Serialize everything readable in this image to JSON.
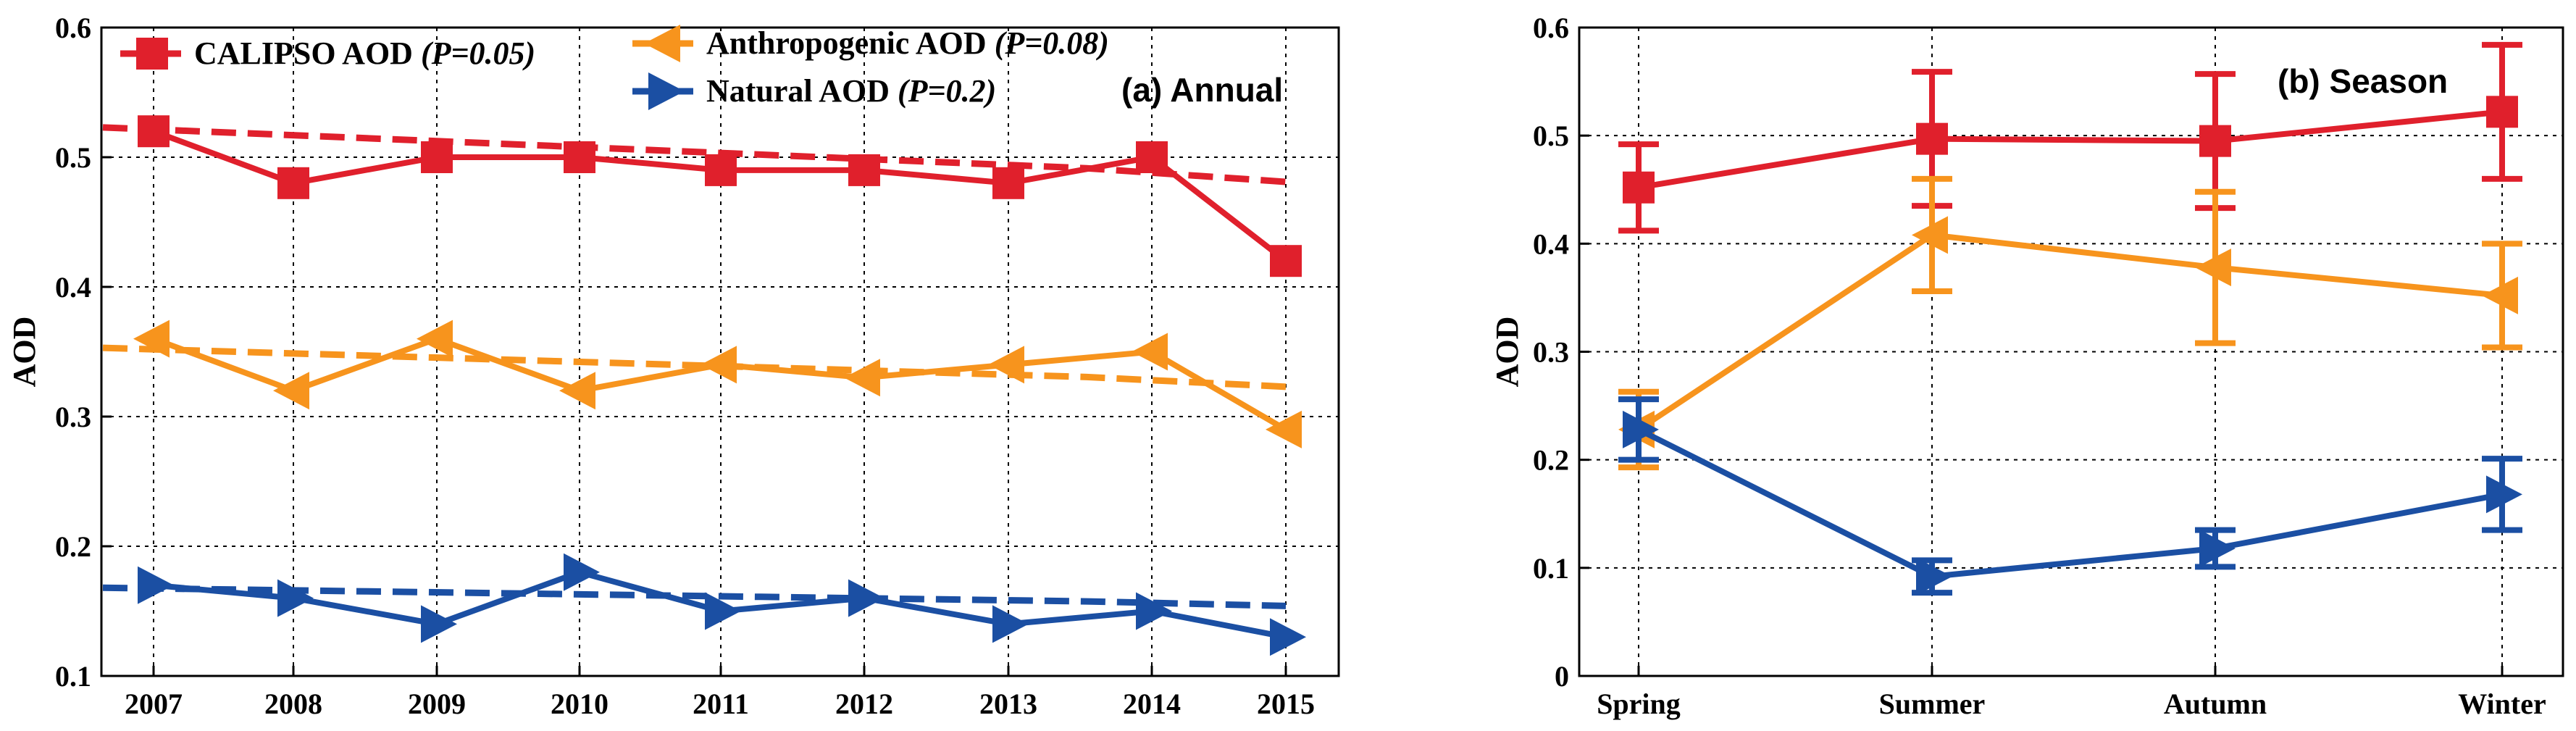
{
  "chart_data": [
    {
      "type": "line",
      "panel_label": "(a) Annual",
      "ylabel": "AOD",
      "ylim": [
        0.1,
        0.6
      ],
      "yticks": [
        "0.1",
        "0.2",
        "0.3",
        "0.4",
        "0.5",
        "0.6"
      ],
      "categories": [
        "2007",
        "2008",
        "2009",
        "2010",
        "2011",
        "2012",
        "2013",
        "2014",
        "2015"
      ],
      "grid": true,
      "legend_position": "top-left",
      "series": [
        {
          "name": "CALIPSO  AOD",
          "p_value": "(P=0.05)",
          "color": "#e0202c",
          "marker": "square",
          "values": [
            0.52,
            0.48,
            0.5,
            0.5,
            0.49,
            0.49,
            0.48,
            0.5,
            0.42
          ],
          "trend": [
            0.523,
            0.5125,
            0.502,
            0.4915,
            0.481
          ]
        },
        {
          "name": "Anthropogenic AOD",
          "p_value": "(P=0.08)",
          "color": "#f7941d",
          "marker": "triangle-left",
          "values": [
            0.36,
            0.32,
            0.36,
            0.32,
            0.34,
            0.33,
            0.34,
            0.35,
            0.29
          ],
          "trend": [
            0.353,
            0.3455,
            0.338,
            0.3305,
            0.323
          ]
        },
        {
          "name": "Natural AOD",
          "p_value": "(P=0.2)",
          "color": "#1b4fa3",
          "marker": "triangle-right",
          "values": [
            0.17,
            0.16,
            0.14,
            0.18,
            0.15,
            0.16,
            0.14,
            0.15,
            0.13
          ],
          "trend": [
            0.168,
            0.1645,
            0.161,
            0.1575,
            0.154
          ]
        }
      ]
    },
    {
      "type": "line",
      "panel_label": "(b) Season",
      "ylabel": "AOD",
      "ylim": [
        0,
        0.6
      ],
      "yticks": [
        "0",
        "0.1",
        "0.2",
        "0.3",
        "0.4",
        "0.5",
        "0.6"
      ],
      "categories": [
        "Spring",
        "Summer",
        "Autumn",
        "Winter"
      ],
      "grid": true,
      "series": [
        {
          "name": "CALIPSO  AOD",
          "color": "#e0202c",
          "marker": "square",
          "values": [
            0.452,
            0.497,
            0.495,
            0.522
          ],
          "errors": [
            0.04,
            0.062,
            0.062,
            0.062
          ]
        },
        {
          "name": "Anthropogenic AOD",
          "color": "#f7941d",
          "marker": "triangle-left",
          "values": [
            0.228,
            0.408,
            0.378,
            0.352
          ],
          "errors": [
            0.035,
            0.052,
            0.07,
            0.048
          ]
        },
        {
          "name": "Natural AOD",
          "color": "#1b4fa3",
          "marker": "triangle-right",
          "values": [
            0.228,
            0.092,
            0.118,
            0.168
          ],
          "errors": [
            0.028,
            0.015,
            0.017,
            0.033
          ]
        }
      ]
    }
  ]
}
